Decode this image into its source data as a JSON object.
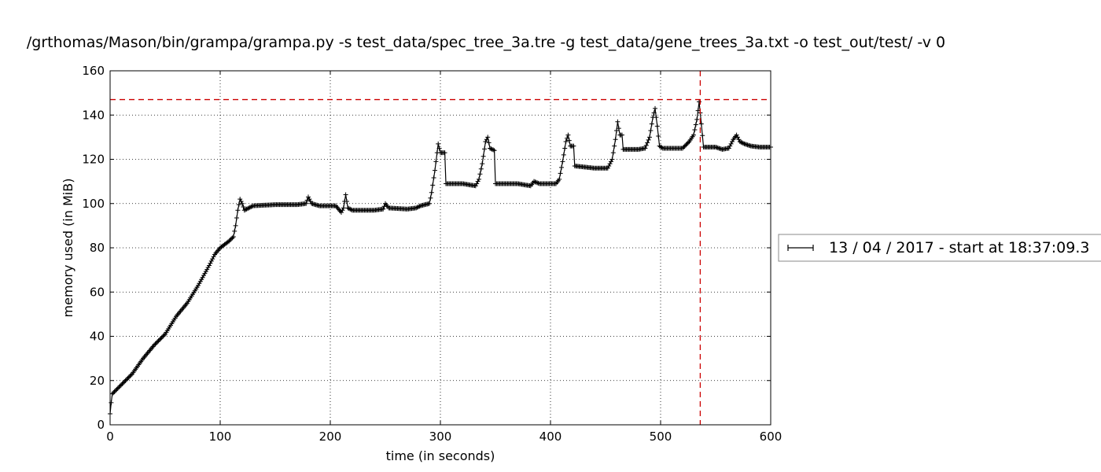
{
  "chart_data": {
    "type": "line",
    "title": "/grthomas/Mason/bin/grampa/grampa.py -s test_data/spec_tree_3a.tre -g test_data/gene_trees_3a.txt -o test_out/test/ -v 0",
    "xlabel": "time (in seconds)",
    "ylabel": "memory used (in MiB)",
    "xlim": [
      0,
      600
    ],
    "ylim": [
      0,
      160
    ],
    "xticks": [
      0,
      100,
      200,
      300,
      400,
      500,
      600
    ],
    "yticks": [
      0,
      20,
      40,
      60,
      80,
      100,
      120,
      140,
      160
    ],
    "x_tick_labels": [
      "0",
      "100",
      "200",
      "300",
      "400",
      "500",
      "600"
    ],
    "y_tick_labels": [
      "0",
      "20",
      "40",
      "60",
      "80",
      "100",
      "120",
      "140",
      "160"
    ],
    "grid": true,
    "legend_position": "right",
    "series_color": "#000000",
    "marker": "plus",
    "max_memory_line": {
      "y": 147,
      "color": "#cc0000",
      "style": "dashed"
    },
    "max_time_line": {
      "x": 536,
      "color": "#cc0000",
      "style": "dashed"
    },
    "series": [
      {
        "name": "13 / 04 / 2017 - start at 18:37:09.3",
        "points": [
          [
            0,
            5
          ],
          [
            1,
            10
          ],
          [
            2,
            14
          ],
          [
            10,
            18
          ],
          [
            20,
            23
          ],
          [
            30,
            30
          ],
          [
            40,
            36
          ],
          [
            50,
            41
          ],
          [
            55,
            45
          ],
          [
            60,
            49
          ],
          [
            70,
            55
          ],
          [
            80,
            63
          ],
          [
            90,
            72
          ],
          [
            95,
            77
          ],
          [
            100,
            80
          ],
          [
            108,
            83
          ],
          [
            112,
            85
          ],
          [
            114,
            90
          ],
          [
            116,
            97
          ],
          [
            118,
            102
          ],
          [
            120,
            100
          ],
          [
            122,
            97
          ],
          [
            126,
            98
          ],
          [
            130,
            99
          ],
          [
            150,
            99.5
          ],
          [
            170,
            99.5
          ],
          [
            178,
            100
          ],
          [
            180,
            103
          ],
          [
            183,
            100
          ],
          [
            190,
            99
          ],
          [
            205,
            99
          ],
          [
            210,
            96
          ],
          [
            212,
            98
          ],
          [
            214,
            104
          ],
          [
            216,
            98
          ],
          [
            220,
            97
          ],
          [
            240,
            97
          ],
          [
            248,
            97.5
          ],
          [
            250,
            100
          ],
          [
            253,
            98
          ],
          [
            270,
            97.5
          ],
          [
            278,
            98
          ],
          [
            282,
            99
          ],
          [
            290,
            100
          ],
          [
            292,
            105
          ],
          [
            295,
            115
          ],
          [
            298,
            127
          ],
          [
            300,
            123
          ],
          [
            304,
            123
          ],
          [
            305,
            109
          ],
          [
            320,
            109
          ],
          [
            332,
            108
          ],
          [
            335,
            111
          ],
          [
            338,
            118
          ],
          [
            341,
            128
          ],
          [
            343,
            130
          ],
          [
            345,
            125
          ],
          [
            349,
            124
          ],
          [
            350,
            109
          ],
          [
            370,
            109
          ],
          [
            382,
            108
          ],
          [
            385,
            110
          ],
          [
            390,
            109
          ],
          [
            405,
            109
          ],
          [
            408,
            111
          ],
          [
            411,
            119
          ],
          [
            414,
            128
          ],
          [
            416,
            131
          ],
          [
            418,
            126
          ],
          [
            421,
            126
          ],
          [
            422,
            117
          ],
          [
            440,
            116
          ],
          [
            452,
            116
          ],
          [
            456,
            120
          ],
          [
            459,
            129
          ],
          [
            461,
            137
          ],
          [
            463,
            131
          ],
          [
            465,
            131
          ],
          [
            466,
            124.5
          ],
          [
            480,
            124.5
          ],
          [
            486,
            125
          ],
          [
            490,
            130
          ],
          [
            493,
            139
          ],
          [
            495,
            143
          ],
          [
            497,
            135
          ],
          [
            499,
            126
          ],
          [
            502,
            125
          ],
          [
            520,
            125
          ],
          [
            526,
            128
          ],
          [
            530,
            131
          ],
          [
            533,
            138
          ],
          [
            535,
            146
          ],
          [
            537,
            136
          ],
          [
            539,
            125.5
          ],
          [
            550,
            125.5
          ],
          [
            556,
            124.5
          ],
          [
            562,
            125
          ],
          [
            566,
            129
          ],
          [
            569,
            131
          ],
          [
            572,
            128
          ],
          [
            576,
            127
          ],
          [
            582,
            126
          ],
          [
            590,
            125.5
          ],
          [
            600,
            125.5
          ]
        ]
      }
    ]
  }
}
